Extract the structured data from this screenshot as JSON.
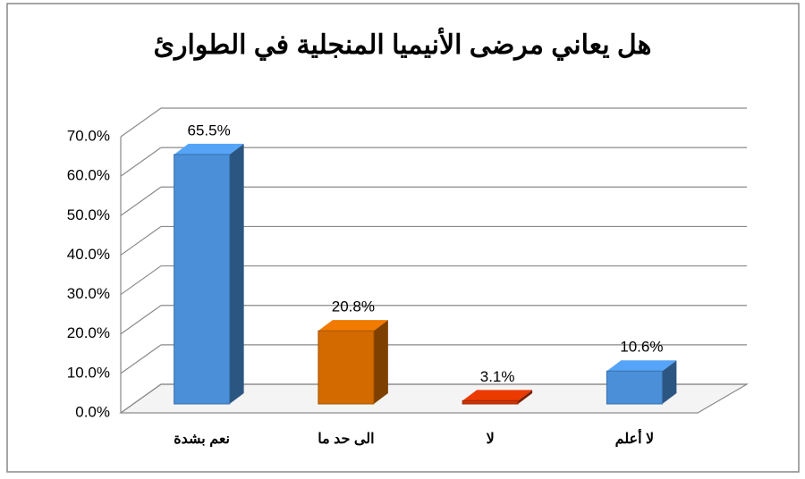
{
  "chart_data": {
    "type": "bar3d",
    "title": "هل يعاني مرضى الأنيميا المنجلية في الطوارئ",
    "categories": [
      "نعم بشدة",
      "الى حد ما",
      "لا",
      "لا أعلم"
    ],
    "values": [
      65.5,
      20.8,
      3.1,
      10.6
    ],
    "value_labels": [
      "65.5%",
      "20.8%",
      "3.1%",
      "10.6%"
    ],
    "colors": [
      "#4a8fd8",
      "#d26a00",
      "#cc3300",
      "#4a8fd8"
    ],
    "ylim": [
      0,
      70
    ],
    "yticks": [
      {
        "value": 0,
        "label": "0.0%"
      },
      {
        "value": 10,
        "label": "10.0%"
      },
      {
        "value": 20,
        "label": "20.0%"
      },
      {
        "value": 30,
        "label": "30.0%"
      },
      {
        "value": 40,
        "label": "40.0%"
      },
      {
        "value": 50,
        "label": "50.0%"
      },
      {
        "value": 60,
        "label": "60.0%"
      },
      {
        "value": 70,
        "label": "70.0%"
      }
    ],
    "grid": true
  }
}
